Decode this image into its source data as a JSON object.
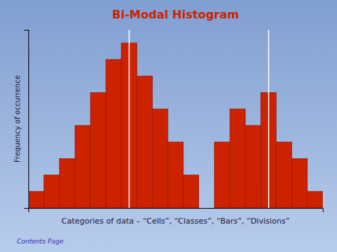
{
  "chart_data": {
    "type": "bar",
    "title": "Bi-Modal Histogram",
    "x_label": "Categories of data – “Cells”, “Classes”, “Bars”, “Divisions”",
    "y_label": "Frequency of occurrence",
    "categories": [
      null,
      null,
      null,
      null,
      null,
      null,
      null,
      null,
      null,
      null,
      null,
      null,
      null,
      null,
      null,
      null,
      null,
      null,
      null
    ],
    "values": [
      1,
      2,
      3,
      5,
      7,
      9,
      10,
      8,
      6,
      4,
      2,
      0,
      4,
      6,
      5,
      7,
      4,
      3,
      1
    ],
    "color": "#cc2200",
    "vlines": [
      6,
      15
    ],
    "ylim": [
      0,
      10.8
    ],
    "tick_labels": false,
    "grid": false,
    "annotations": [
      "Contents Page"
    ]
  }
}
